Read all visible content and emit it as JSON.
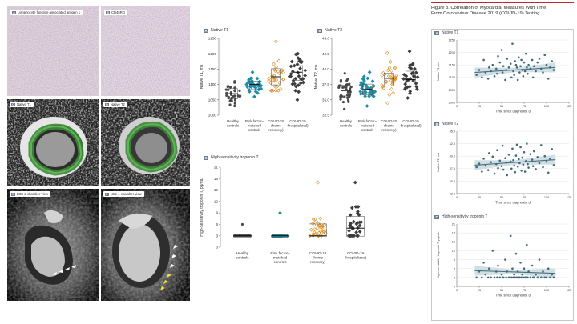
{
  "histology": [
    {
      "letter": "A",
      "title": "Lymphocyte function-associated antigen 1"
    },
    {
      "letter": "B",
      "title": "CD45RO"
    }
  ],
  "mri": [
    {
      "letter": "C",
      "title": "Native T1"
    },
    {
      "letter": "D",
      "title": "Native T2"
    },
    {
      "letter": "E",
      "title": "LGE 3-chamber view"
    },
    {
      "letter": "F",
      "title": "LGE 4-chamber view"
    }
  ],
  "colors": {
    "gray": "#4a4a4a",
    "teal": "#1f8fa6",
    "orange": "#d98a1c",
    "dark": "#3d3d3d",
    "fit_line": "#49707d",
    "ci_band": "#c9d9df",
    "accent_red": "#c1272d",
    "arrow_white": "#ffffff",
    "arrow_yellow": "#f0e23a"
  },
  "group_labels": [
    [
      "Healthy",
      "controls"
    ],
    [
      "Risk factor–",
      "matched",
      "controls"
    ],
    [
      "COVID-19",
      "(home",
      "recovery)"
    ],
    [
      "COVID-19",
      "(hospitalized)"
    ]
  ],
  "figure3": {
    "title_line1": "Figure 3. Correlation of Myocardial Measures With Time",
    "title_line2": "From Coronavirus Disease 2019 (COVID-19) Testing"
  },
  "chart_data": [
    {
      "id": "A",
      "type": "scatter",
      "title": "Native T1",
      "ylabel": "Native T1, ms",
      "ylim": [
        1000,
        1250
      ],
      "yticks": [
        1000,
        1050,
        1100,
        1150,
        1200,
        1250
      ],
      "groups": [
        "Healthy controls",
        "Risk factor–matched controls",
        "COVID-19 (home recovery)",
        "COVID-19 (hospitalized)"
      ],
      "medians": [
        1070,
        1100,
        1125,
        1140
      ],
      "q1": [
        1055,
        1085,
        1100,
        1115
      ],
      "q3": [
        1085,
        1110,
        1150,
        1160
      ],
      "ranges": [
        [
          1030,
          1110
        ],
        [
          1060,
          1140
        ],
        [
          1080,
          1240
        ],
        [
          1050,
          1200
        ]
      ]
    },
    {
      "id": "B",
      "type": "scatter",
      "title": "Native T2",
      "ylabel": "Native T2, ms",
      "ylim": [
        32.5,
        45.0
      ],
      "yticks": [
        32.5,
        35.0,
        37.5,
        40.0,
        42.5,
        45.0
      ],
      "groups": [
        "Healthy controls",
        "Risk factor–matched controls",
        "COVID-19 (home recovery)",
        "COVID-19 (hospitalized)"
      ],
      "medians": [
        36.5,
        36.7,
        38.5,
        38.3
      ],
      "q1": [
        35.7,
        35.9,
        37.3,
        37.3
      ],
      "q3": [
        37.3,
        37.5,
        39.3,
        39.6
      ],
      "ranges": [
        [
          33.5,
          39.3
        ],
        [
          34.0,
          39.5
        ],
        [
          34.5,
          42.6
        ],
        [
          35.3,
          42.9
        ]
      ]
    },
    {
      "id": "C",
      "type": "scatter",
      "title": "High-sensitivity troponin T",
      "ylabel": "High-sensitivity troponin T, pg/mL",
      "ylim": [
        0,
        21
      ],
      "yticks": [
        0,
        3,
        6,
        9,
        12,
        15,
        18,
        21
      ],
      "groups": [
        "Healthy controls",
        "Risk factor–matched controls",
        "COVID-19 (home recovery)",
        "COVID-19 (hospitalized)"
      ],
      "medians": [
        3,
        3,
        3,
        5
      ],
      "q1": [
        3,
        3,
        3,
        3
      ],
      "q3": [
        3,
        3,
        6,
        8
      ],
      "ranges": [
        [
          3,
          6
        ],
        [
          3,
          9
        ],
        [
          3,
          17
        ],
        [
          3,
          17
        ]
      ]
    },
    {
      "id": "A",
      "type": "scatter",
      "title": "Native T1",
      "xlabel": "Time since diagnosis, d",
      "ylabel": "Native T1, ms",
      "xlim": [
        0,
        125
      ],
      "xticks": [
        0,
        25,
        50,
        75,
        100,
        125
      ],
      "ylim": [
        1000,
        1250
      ],
      "yticks": [
        1000,
        1050,
        1100,
        1150,
        1200,
        1250
      ],
      "fit": {
        "x": [
          20,
          110
        ],
        "y": [
          1120,
          1140
        ]
      },
      "points_x": [
        22,
        25,
        28,
        30,
        32,
        35,
        36,
        38,
        40,
        42,
        44,
        45,
        46,
        48,
        50,
        51,
        52,
        54,
        55,
        56,
        58,
        60,
        61,
        62,
        63,
        64,
        65,
        66,
        67,
        68,
        69,
        70,
        71,
        72,
        73,
        74,
        75,
        76,
        77,
        78,
        79,
        80,
        82,
        84,
        85,
        86,
        88,
        90,
        92,
        94,
        96,
        98,
        100,
        102,
        104,
        106,
        108
      ],
      "points_y": [
        1110,
        1130,
        1100,
        1170,
        1120,
        1095,
        1140,
        1125,
        1150,
        1105,
        1135,
        1115,
        1185,
        1160,
        1210,
        1120,
        1145,
        1090,
        1130,
        1175,
        1140,
        1155,
        1100,
        1235,
        1125,
        1110,
        1165,
        1150,
        1140,
        1090,
        1180,
        1120,
        1145,
        1170,
        1130,
        1105,
        1160,
        1125,
        1195,
        1140,
        1115,
        1150,
        1135,
        1170,
        1100,
        1145,
        1125,
        1160,
        1175,
        1135,
        1120,
        1190,
        1150,
        1095,
        1140,
        1165,
        1130
      ]
    },
    {
      "id": "B",
      "type": "scatter",
      "title": "Native T2",
      "xlabel": "Time since diagnosis, d",
      "ylabel": "Native T2, ms",
      "xlim": [
        0,
        125
      ],
      "xticks": [
        0,
        25,
        50,
        75,
        100,
        125
      ],
      "ylim": [
        32.5,
        45.0
      ],
      "yticks": [
        32.5,
        35.0,
        37.5,
        40.0,
        42.5,
        45.0
      ],
      "fit": {
        "x": [
          20,
          110
        ],
        "y": [
          38.2,
          39.3
        ]
      },
      "points_x": [
        22,
        25,
        28,
        30,
        32,
        35,
        36,
        38,
        40,
        42,
        44,
        45,
        46,
        48,
        50,
        51,
        52,
        54,
        55,
        56,
        58,
        60,
        61,
        62,
        63,
        64,
        65,
        66,
        67,
        68,
        69,
        70,
        71,
        72,
        73,
        74,
        75,
        76,
        77,
        78,
        79,
        80,
        82,
        84,
        85,
        86,
        88,
        90,
        92,
        94,
        96,
        98,
        100,
        102,
        104,
        106,
        108
      ],
      "points_y": [
        37.8,
        38.5,
        36.9,
        39.5,
        38.1,
        37.2,
        40.6,
        38.8,
        39.9,
        36.5,
        38.4,
        41.2,
        37.6,
        39.1,
        38.0,
        42.1,
        37.3,
        39.6,
        38.7,
        36.2,
        40.3,
        38.9,
        37.5,
        41.5,
        39.2,
        38.1,
        36.8,
        40.1,
        42.3,
        37.9,
        39.4,
        38.6,
        41.8,
        37.1,
        39.7,
        38.3,
        40.8,
        36.9,
        39.0,
        42.5,
        38.4,
        37.7,
        40.4,
        39.3,
        38.0,
        41.0,
        37.4,
        39.8,
        38.6,
        42.2,
        37.8,
        40.0,
        38.9,
        36.7,
        39.5,
        41.4,
        38.2
      ]
    },
    {
      "id": "C",
      "type": "scatter",
      "title": "High-sensitivity troponin T",
      "xlabel": "Time since diagnosis, d",
      "ylabel": "High-sensitivity troponin T, pg/mL",
      "xlim": [
        0,
        125
      ],
      "xticks": [
        0,
        25,
        50,
        75,
        100,
        125
      ],
      "ylim": [
        0,
        21
      ],
      "yticks": [
        0,
        3,
        6,
        9,
        12,
        15,
        18,
        21
      ],
      "fit": {
        "x": [
          20,
          110
        ],
        "y": [
          5.3,
          4.4
        ]
      },
      "points_x": [
        22,
        25,
        28,
        30,
        32,
        35,
        36,
        38,
        40,
        42,
        44,
        45,
        46,
        48,
        50,
        51,
        52,
        54,
        55,
        56,
        58,
        60,
        61,
        62,
        63,
        64,
        65,
        66,
        67,
        68,
        69,
        70,
        71,
        72,
        73,
        74,
        75,
        76,
        77,
        78,
        79,
        80,
        82,
        84,
        85,
        86,
        88,
        90,
        92,
        94,
        96,
        98,
        100,
        102,
        104,
        106,
        108
      ],
      "points_y": [
        3,
        5,
        3,
        8,
        4,
        3,
        6,
        3,
        12,
        3,
        5,
        3,
        7,
        3,
        4,
        3,
        3,
        9,
        3,
        5,
        3,
        17,
        3,
        6,
        3,
        4,
        3,
        11,
        3,
        5,
        3,
        3,
        8,
        3,
        4,
        3,
        6,
        3,
        3,
        14,
        3,
        5,
        3,
        7,
        3,
        3,
        4,
        3,
        9,
        3,
        5,
        3,
        3,
        6,
        3,
        4,
        3
      ]
    }
  ]
}
